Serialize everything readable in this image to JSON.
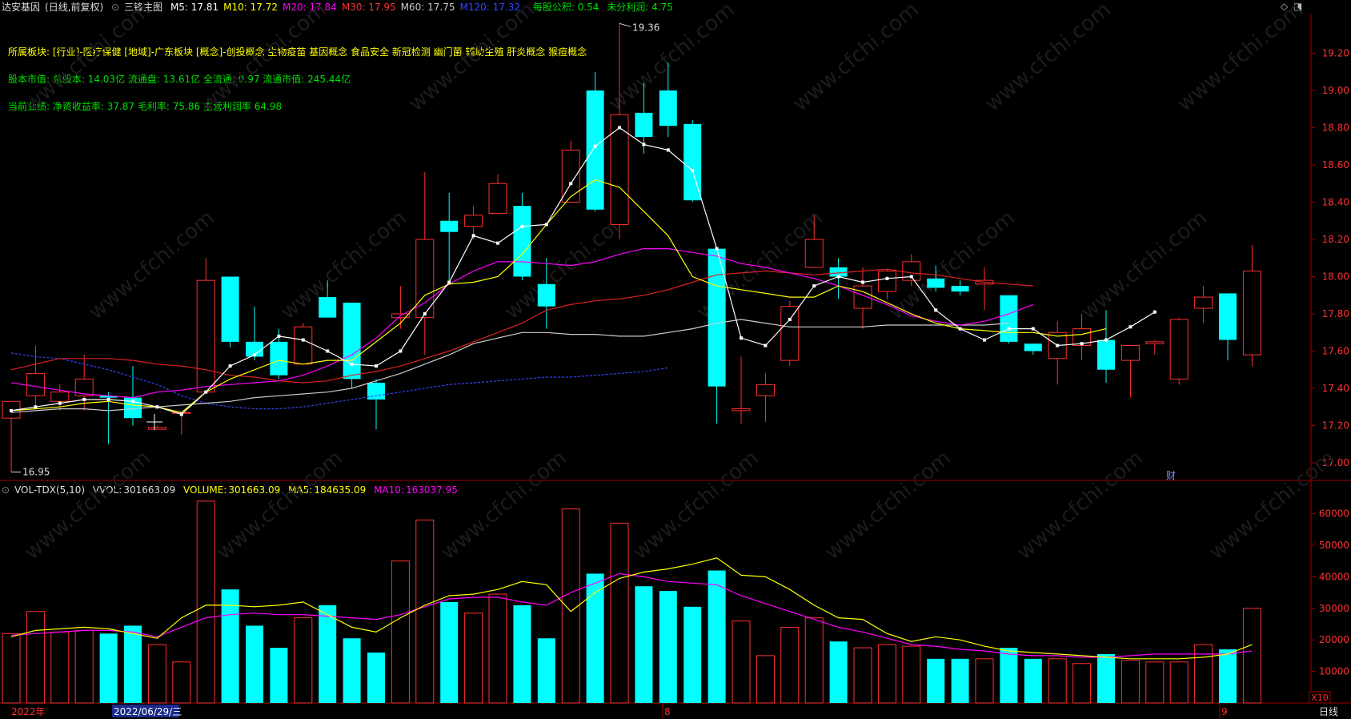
{
  "header": {
    "stock_name": "达安基因",
    "period_mode": "(日线,前复权)",
    "indicator_name": "三锋主图",
    "ma_values": [
      {
        "label": "M5:",
        "value": "17.81",
        "color": "#ffffff"
      },
      {
        "label": "M10:",
        "value": "17.72",
        "color": "#ffff00"
      },
      {
        "label": "M20:",
        "value": "17.84",
        "color": "#ff00ff"
      },
      {
        "label": "M30:",
        "value": "17.95",
        "color": "#ff3333"
      },
      {
        "label": "M60:",
        "value": "17.75",
        "color": "#cccccc"
      },
      {
        "label": "M120:",
        "value": "17.32",
        "color": "#3344ff"
      }
    ],
    "eps": {
      "label": "每股公积:",
      "value": "0.54",
      "color": "#00e000"
    },
    "undist": {
      "label": "未分利润:",
      "value": "4.75",
      "color": "#00e000"
    }
  },
  "info_lines": [
    {
      "text": "所属板块: [行业]-医疗保健 [地域]-广东板块 [概念]-创投概念 生物疫苗 基因概念 食品安全 新冠检测 幽门菌 辅助生殖 肝炎概念 猴痘概念",
      "color": "#ffff00"
    },
    {
      "text": "股本市值: 总股本: 14.03亿 流通盘: 13.61亿 全流通: 0.97 流通市值: 245.44亿",
      "color": "#00e000"
    },
    {
      "text": "当前业绩:  净资收益率: 37.87 毛利率: 75.86 主营利润率 64.98",
      "color": "#00e000"
    }
  ],
  "annotations": {
    "high_label": "19.36",
    "low_label": "16.95",
    "fin_badge": "财",
    "zoom_badge": "X10"
  },
  "price_axis": {
    "ticks": [
      "19.20",
      "19.00",
      "18.80",
      "18.60",
      "18.40",
      "18.20",
      "18.00",
      "17.80",
      "17.60",
      "17.40",
      "17.20",
      "17.00"
    ]
  },
  "volume_axis": {
    "ticks": [
      "60000",
      "50000",
      "40000",
      "30000",
      "20000",
      "10000"
    ]
  },
  "volume_header": {
    "name": "VOL-TDX(5,10)",
    "vvol": {
      "label": "VVOL:",
      "value": "301663.09",
      "color": "#cccccc"
    },
    "volume": {
      "label": "VOLUME:",
      "value": "301663.09",
      "color": "#ffff00"
    },
    "ma5": {
      "label": "MA5:",
      "value": "184635.09",
      "color": "#ffff00"
    },
    "ma10": {
      "label": "MA10:",
      "value": "163037.95",
      "color": "#ff00ff"
    }
  },
  "time_axis": {
    "labels": [
      "2022年",
      "2022/06/29/三",
      "8",
      "9"
    ],
    "period_label": "日线"
  },
  "colors": {
    "up": "#ff3030",
    "down": "#00ffff",
    "border": "#a00000",
    "background": "#000000"
  },
  "watermark": "www.cfchi.com",
  "chart_data": {
    "type": "candlestick",
    "price_range": [
      16.9,
      19.45
    ],
    "volume_range": [
      0,
      67000
    ],
    "candles": [
      {
        "o": 17.24,
        "h": 17.32,
        "l": 16.95,
        "c": 17.33,
        "v": 22000
      },
      {
        "o": 17.36,
        "h": 17.63,
        "l": 17.3,
        "c": 17.48,
        "v": 29000
      },
      {
        "o": 17.33,
        "h": 17.42,
        "l": 17.28,
        "c": 17.38,
        "v": 22500
      },
      {
        "o": 17.36,
        "h": 17.58,
        "l": 17.28,
        "c": 17.45,
        "v": 23000
      },
      {
        "o": 17.36,
        "h": 17.38,
        "l": 17.1,
        "c": 17.35,
        "v": 22000
      },
      {
        "o": 17.35,
        "h": 17.52,
        "l": 17.2,
        "c": 17.24,
        "v": 24500
      },
      {
        "o": 17.18,
        "h": 17.2,
        "l": 17.18,
        "c": 17.19,
        "v": 18500
      },
      {
        "o": 17.27,
        "h": 17.27,
        "l": 17.15,
        "c": 17.27,
        "v": 13000
      },
      {
        "o": 17.38,
        "h": 18.1,
        "l": 17.38,
        "c": 17.98,
        "v": 64000
      },
      {
        "o": 18.0,
        "h": 18.0,
        "l": 17.62,
        "c": 17.65,
        "v": 36000
      },
      {
        "o": 17.65,
        "h": 17.84,
        "l": 17.55,
        "c": 17.57,
        "v": 24500
      },
      {
        "o": 17.65,
        "h": 17.72,
        "l": 17.45,
        "c": 17.47,
        "v": 17500
      },
      {
        "o": 17.53,
        "h": 17.75,
        "l": 17.53,
        "c": 17.73,
        "v": 27000
      },
      {
        "o": 17.89,
        "h": 17.98,
        "l": 17.78,
        "c": 17.78,
        "v": 31000
      },
      {
        "o": 17.86,
        "h": 17.86,
        "l": 17.4,
        "c": 17.45,
        "v": 20500
      },
      {
        "o": 17.43,
        "h": 17.45,
        "l": 17.18,
        "c": 17.34,
        "v": 16000
      },
      {
        "o": 17.78,
        "h": 17.95,
        "l": 17.72,
        "c": 17.8,
        "v": 45000
      },
      {
        "o": 17.78,
        "h": 18.56,
        "l": 17.58,
        "c": 18.2,
        "v": 58000
      },
      {
        "o": 18.3,
        "h": 18.45,
        "l": 17.98,
        "c": 18.24,
        "v": 32000
      },
      {
        "o": 18.27,
        "h": 18.38,
        "l": 18.2,
        "c": 18.33,
        "v": 28500
      },
      {
        "o": 18.34,
        "h": 18.55,
        "l": 18.34,
        "c": 18.5,
        "v": 34500
      },
      {
        "o": 18.38,
        "h": 18.45,
        "l": 17.98,
        "c": 18.0,
        "v": 31000
      },
      {
        "o": 17.96,
        "h": 18.1,
        "l": 17.72,
        "c": 17.84,
        "v": 20500
      },
      {
        "o": 18.4,
        "h": 18.73,
        "l": 18.4,
        "c": 18.68,
        "v": 61500
      },
      {
        "o": 19.0,
        "h": 19.1,
        "l": 18.35,
        "c": 18.36,
        "v": 41000
      },
      {
        "o": 18.28,
        "h": 19.36,
        "l": 18.2,
        "c": 18.87,
        "v": 57000
      },
      {
        "o": 18.88,
        "h": 19.04,
        "l": 18.66,
        "c": 18.75,
        "v": 37000
      },
      {
        "o": 19.0,
        "h": 19.15,
        "l": 18.75,
        "c": 18.81,
        "v": 35500
      },
      {
        "o": 18.82,
        "h": 18.84,
        "l": 18.4,
        "c": 18.41,
        "v": 30500
      },
      {
        "o": 18.15,
        "h": 18.15,
        "l": 17.21,
        "c": 17.41,
        "v": 42000
      },
      {
        "o": 17.28,
        "h": 17.57,
        "l": 17.21,
        "c": 17.29,
        "v": 26000
      },
      {
        "o": 17.36,
        "h": 17.48,
        "l": 17.22,
        "c": 17.42,
        "v": 15000
      },
      {
        "o": 17.55,
        "h": 17.87,
        "l": 17.52,
        "c": 17.84,
        "v": 24000
      },
      {
        "o": 18.05,
        "h": 18.33,
        "l": 18.05,
        "c": 18.2,
        "v": 27000
      },
      {
        "o": 18.05,
        "h": 18.1,
        "l": 17.88,
        "c": 18.0,
        "v": 19500
      },
      {
        "o": 17.83,
        "h": 18.05,
        "l": 17.72,
        "c": 17.95,
        "v": 17500
      },
      {
        "o": 17.92,
        "h": 18.04,
        "l": 17.88,
        "c": 18.03,
        "v": 18500
      },
      {
        "o": 17.98,
        "h": 18.12,
        "l": 17.95,
        "c": 18.08,
        "v": 18000
      },
      {
        "o": 17.99,
        "h": 18.06,
        "l": 17.92,
        "c": 17.94,
        "v": 14000
      },
      {
        "o": 17.95,
        "h": 17.98,
        "l": 17.9,
        "c": 17.92,
        "v": 14000
      },
      {
        "o": 17.96,
        "h": 18.05,
        "l": 17.82,
        "c": 17.98,
        "v": 14000
      },
      {
        "o": 17.9,
        "h": 17.9,
        "l": 17.64,
        "c": 17.65,
        "v": 17500
      },
      {
        "o": 17.64,
        "h": 17.64,
        "l": 17.58,
        "c": 17.6,
        "v": 14000
      },
      {
        "o": 17.56,
        "h": 17.76,
        "l": 17.42,
        "c": 17.7,
        "v": 14000
      },
      {
        "o": 17.63,
        "h": 17.8,
        "l": 17.55,
        "c": 17.72,
        "v": 12500
      },
      {
        "o": 17.66,
        "h": 17.82,
        "l": 17.43,
        "c": 17.5,
        "v": 15500
      },
      {
        "o": 17.55,
        "h": 17.63,
        "l": 17.35,
        "c": 17.63,
        "v": 13500
      },
      {
        "o": 17.64,
        "h": 17.66,
        "l": 17.58,
        "c": 17.65,
        "v": 13000
      },
      {
        "o": 17.45,
        "h": 17.78,
        "l": 17.42,
        "c": 17.77,
        "v": 13000
      },
      {
        "o": 17.83,
        "h": 17.95,
        "l": 17.75,
        "c": 17.89,
        "v": 18500
      },
      {
        "o": 17.91,
        "h": 17.91,
        "l": 17.55,
        "c": 17.66,
        "v": 17000
      },
      {
        "o": 17.58,
        "h": 18.17,
        "l": 17.52,
        "c": 18.03,
        "v": 30000
      }
    ],
    "ma5": [
      17.28,
      17.3,
      17.32,
      17.34,
      17.34,
      17.33,
      17.3,
      17.26,
      17.38,
      17.52,
      17.58,
      17.68,
      17.66,
      17.6,
      17.53,
      17.52,
      17.6,
      17.8,
      17.97,
      18.22,
      18.18,
      18.27,
      18.28,
      18.5,
      18.7,
      18.8,
      18.71,
      18.68,
      18.57,
      18.15,
      17.67,
      17.63,
      17.77,
      17.95,
      18.0,
      17.97,
      17.99,
      18.0,
      17.82,
      17.72,
      17.66,
      17.72,
      17.72,
      17.63,
      17.64,
      17.66,
      17.73,
      17.81
    ],
    "ma10": [
      17.28,
      17.29,
      17.3,
      17.32,
      17.33,
      17.31,
      17.3,
      17.27,
      17.38,
      17.45,
      17.5,
      17.55,
      17.53,
      17.55,
      17.55,
      17.65,
      17.75,
      17.9,
      17.96,
      17.97,
      18.0,
      18.12,
      18.28,
      18.43,
      18.52,
      18.48,
      18.35,
      18.22,
      18.0,
      17.95,
      17.93,
      17.91,
      17.89,
      17.89,
      17.95,
      17.92,
      17.86,
      17.8,
      17.75,
      17.72,
      17.71,
      17.7,
      17.7,
      17.68,
      17.69,
      17.72
    ],
    "ma20": [
      17.43,
      17.41,
      17.39,
      17.37,
      17.36,
      17.35,
      17.38,
      17.39,
      17.41,
      17.42,
      17.43,
      17.44,
      17.47,
      17.52,
      17.58,
      17.67,
      17.79,
      17.86,
      17.96,
      18.03,
      18.08,
      18.08,
      18.07,
      18.06,
      18.08,
      18.12,
      18.15,
      18.15,
      18.13,
      18.11,
      18.07,
      18.05,
      18.02,
      17.99,
      17.95,
      17.9,
      17.85,
      17.79,
      17.76,
      17.74,
      17.76,
      17.8,
      17.85
    ],
    "ma30": [
      17.5,
      17.53,
      17.56,
      17.56,
      17.56,
      17.55,
      17.53,
      17.52,
      17.5,
      17.47,
      17.46,
      17.44,
      17.43,
      17.44,
      17.47,
      17.49,
      17.52,
      17.56,
      17.6,
      17.65,
      17.7,
      17.75,
      17.82,
      17.85,
      17.87,
      17.88,
      17.9,
      17.93,
      17.97,
      18.01,
      18.02,
      18.03,
      18.02,
      18.01,
      18.02,
      18.03,
      18.04,
      18.02,
      18.01,
      17.99,
      17.97,
      17.96,
      17.95
    ],
    "ma60": [
      17.27,
      17.28,
      17.29,
      17.29,
      17.28,
      17.29,
      17.3,
      17.31,
      17.32,
      17.33,
      17.35,
      17.36,
      17.37,
      17.38,
      17.4,
      17.44,
      17.48,
      17.53,
      17.58,
      17.64,
      17.67,
      17.7,
      17.7,
      17.69,
      17.69,
      17.68,
      17.68,
      17.7,
      17.72,
      17.75,
      17.77,
      17.75,
      17.73,
      17.73,
      17.73,
      17.73,
      17.74,
      17.74,
      17.74,
      17.74,
      17.74,
      17.75
    ],
    "ma120": [
      17.59,
      17.57,
      17.56,
      17.53,
      17.5,
      17.46,
      17.42,
      17.36,
      17.32,
      17.3,
      17.29,
      17.29,
      17.3,
      17.32,
      17.34,
      17.36,
      17.38,
      17.4,
      17.42,
      17.43,
      17.44,
      17.45,
      17.46,
      17.46,
      17.47,
      17.48,
      17.49,
      17.51
    ],
    "vol_ma5": [
      21000,
      23000,
      23500,
      24000,
      23500,
      22000,
      20500,
      27000,
      31000,
      31000,
      30500,
      31000,
      32000,
      28000,
      24000,
      22500,
      27000,
      31000,
      34000,
      34500,
      36000,
      38500,
      37500,
      29000,
      35000,
      39500,
      41500,
      42500,
      44000,
      46000,
      40500,
      40000,
      36000,
      31000,
      27000,
      26500,
      22000,
      19500,
      21000,
      20000,
      18000,
      16500,
      16000,
      15500,
      15000,
      14500,
      14000,
      14000,
      14000,
      14500,
      15500,
      18500
    ],
    "vol_ma10": [
      21500,
      22000,
      22500,
      23000,
      23000,
      22500,
      21000,
      24000,
      27000,
      28000,
      28500,
      28000,
      28000,
      27500,
      27000,
      26500,
      28000,
      30500,
      33000,
      33500,
      33500,
      32000,
      31000,
      35000,
      38000,
      41000,
      40000,
      38500,
      38000,
      37500,
      34000,
      31500,
      29000,
      26500,
      24000,
      22500,
      20500,
      18500,
      18000,
      17000,
      16500,
      15500,
      15000,
      15000,
      14500,
      14500,
      15000,
      15500,
      15500,
      15500,
      15500,
      16500
    ]
  }
}
